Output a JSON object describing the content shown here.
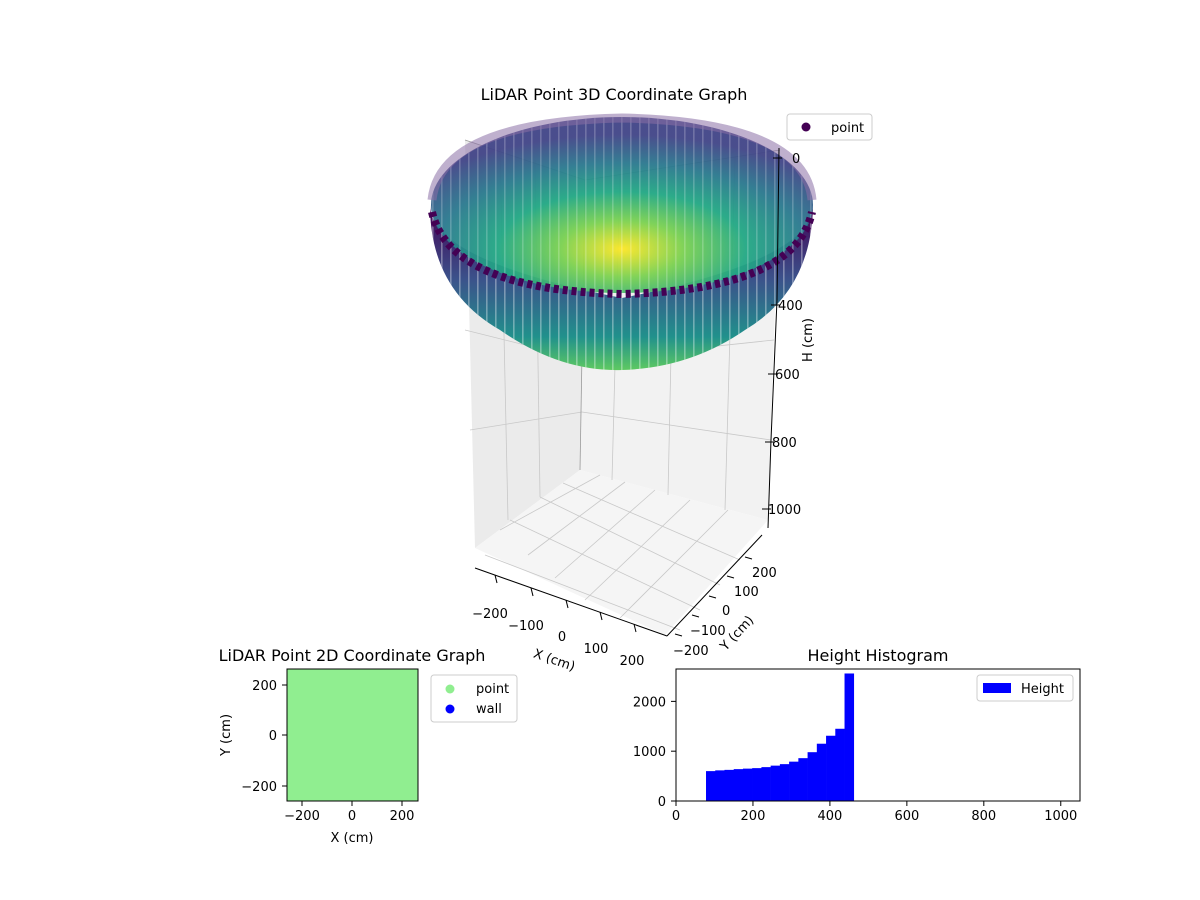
{
  "chart_data": [
    {
      "type": "scatter3d",
      "title": "LiDAR Point 3D Coordinate Graph",
      "xlabel": "X (cm)",
      "ylabel": "Y (cm)",
      "zlabel": "H (cm)",
      "xticks": [
        "−200",
        "−100",
        "0",
        "100",
        "200"
      ],
      "yticks": [
        "−200",
        "−100",
        "0",
        "100",
        "200"
      ],
      "zticks": [
        "0",
        "400",
        "600",
        "800",
        "1000"
      ],
      "xlim": [
        -250,
        250
      ],
      "ylim": [
        -250,
        250
      ],
      "zlim": [
        0,
        1000
      ],
      "z_inverted": true,
      "colormap": "viridis",
      "legend": {
        "label": "point",
        "color": "#440154",
        "placement": "top-right"
      },
      "surface": {
        "shape": "hemispherical bowl",
        "rim_h": 0,
        "bottom_h": 460,
        "radius": 250
      }
    },
    {
      "type": "scatter",
      "title": "LiDAR Point 2D Coordinate Graph",
      "xlabel": "X (cm)",
      "ylabel": "Y (cm)",
      "xticks": [
        "−200",
        "0",
        "200"
      ],
      "yticks": [
        "200",
        "0",
        "−200"
      ],
      "xlim": [
        -260,
        260
      ],
      "ylim": [
        -260,
        260
      ],
      "series": [
        {
          "name": "point",
          "color": "#90ee90"
        },
        {
          "name": "wall",
          "color": "#0000ff"
        }
      ],
      "legend_placement": "outside-right"
    },
    {
      "type": "bar",
      "title": "Height Histogram",
      "xticks": [
        "0",
        "200",
        "400",
        "600",
        "800",
        "1000"
      ],
      "yticks": [
        "0",
        "1000",
        "2000"
      ],
      "xlim": [
        0,
        1050
      ],
      "ylim": [
        0,
        2650
      ],
      "bin_width": 24,
      "bins": [
        {
          "x0": 78,
          "value": 600
        },
        {
          "x0": 102,
          "value": 615
        },
        {
          "x0": 126,
          "value": 625
        },
        {
          "x0": 150,
          "value": 640
        },
        {
          "x0": 174,
          "value": 650
        },
        {
          "x0": 198,
          "value": 660
        },
        {
          "x0": 222,
          "value": 680
        },
        {
          "x0": 246,
          "value": 710
        },
        {
          "x0": 270,
          "value": 740
        },
        {
          "x0": 294,
          "value": 790
        },
        {
          "x0": 318,
          "value": 860
        },
        {
          "x0": 342,
          "value": 980
        },
        {
          "x0": 366,
          "value": 1150
        },
        {
          "x0": 390,
          "value": 1310
        },
        {
          "x0": 414,
          "value": 1450
        },
        {
          "x0": 438,
          "value": 2560
        }
      ],
      "series_name": "Height",
      "color": "#0000ff",
      "legend_placement": "top-right"
    }
  ]
}
